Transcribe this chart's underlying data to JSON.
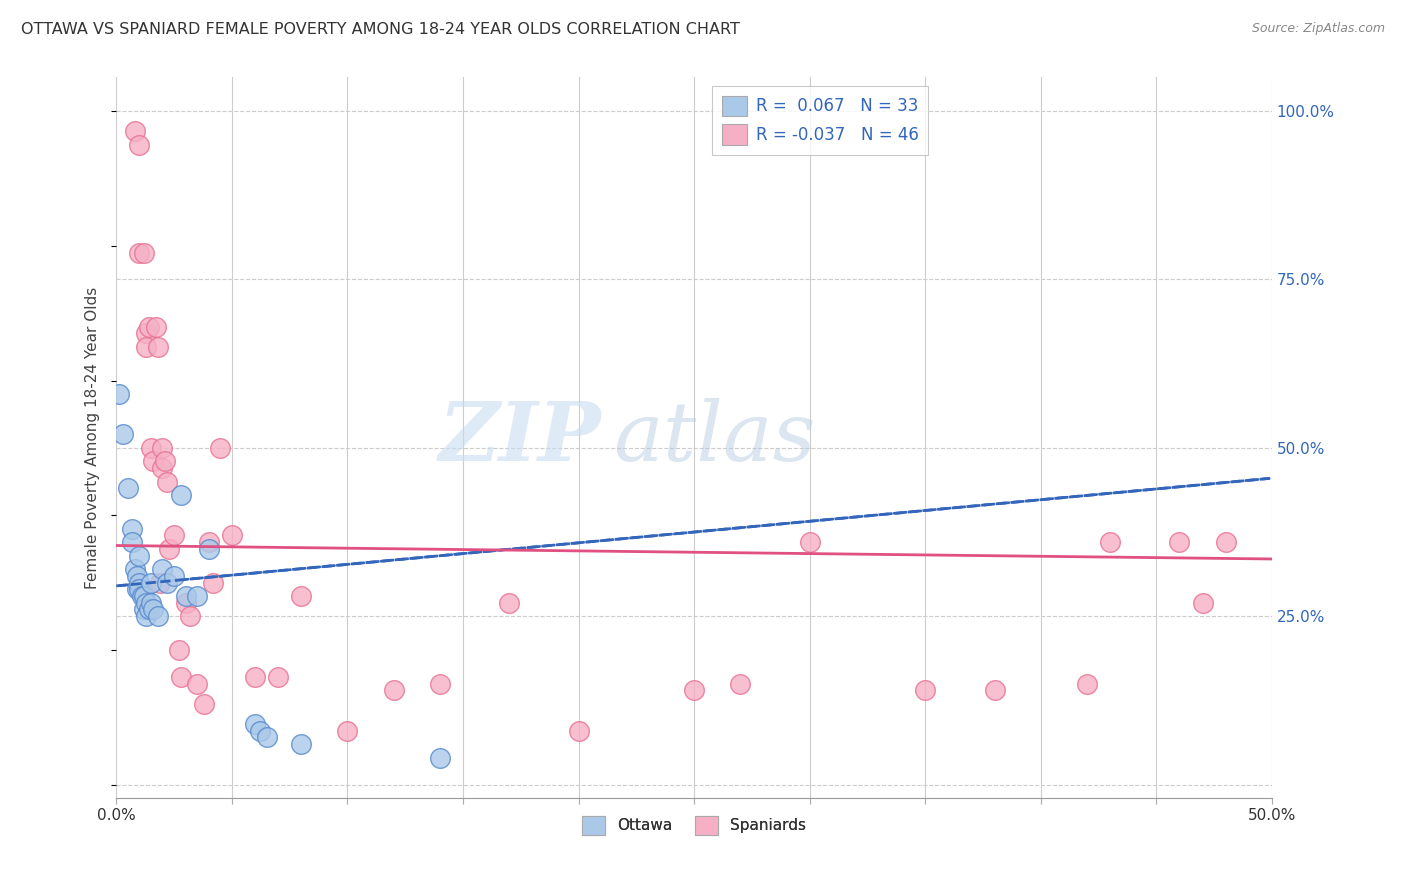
{
  "title": "OTTAWA VS SPANIARD FEMALE POVERTY AMONG 18-24 YEAR OLDS CORRELATION CHART",
  "source": "Source: ZipAtlas.com",
  "ylabel": "Female Poverty Among 18-24 Year Olds",
  "xlim": [
    0.0,
    0.5
  ],
  "ylim": [
    -0.02,
    1.05
  ],
  "xticks": [
    0.0,
    0.05,
    0.1,
    0.15,
    0.2,
    0.25,
    0.3,
    0.35,
    0.4,
    0.45,
    0.5
  ],
  "xticklabels": [
    "0.0%",
    "",
    "",
    "",
    "",
    "",
    "",
    "",
    "",
    "",
    "50.0%"
  ],
  "yticks_right": [
    0.0,
    0.25,
    0.5,
    0.75,
    1.0
  ],
  "yticklabels_right": [
    "",
    "25.0%",
    "50.0%",
    "75.0%",
    "100.0%"
  ],
  "ottawa_color": "#aac8e8",
  "spaniard_color": "#f5b0c5",
  "ottawa_edge_color": "#5588cc",
  "spaniard_edge_color": "#e87090",
  "ottawa_line_color": "#3366bb",
  "spaniard_line_color": "#e05080",
  "ottawa_R": 0.067,
  "ottawa_N": 33,
  "spaniard_R": -0.037,
  "spaniard_N": 46,
  "background_color": "#ffffff",
  "grid_color": "#cccccc",
  "watermark_zip": "ZIP",
  "watermark_atlas": "atlas",
  "legend_text_color": "#3366bb",
  "ottawa_trend_x0": 0.0,
  "ottawa_trend_y0": 0.295,
  "ottawa_trend_x1": 0.5,
  "ottawa_trend_y1": 0.455,
  "spaniard_trend_x0": 0.0,
  "spaniard_trend_y0": 0.355,
  "spaniard_trend_x1": 0.5,
  "spaniard_trend_y1": 0.335,
  "ottawa_scatter_x": [
    0.001,
    0.003,
    0.005,
    0.007,
    0.007,
    0.008,
    0.009,
    0.009,
    0.01,
    0.01,
    0.01,
    0.011,
    0.012,
    0.012,
    0.013,
    0.013,
    0.014,
    0.015,
    0.015,
    0.016,
    0.018,
    0.02,
    0.022,
    0.025,
    0.028,
    0.03,
    0.035,
    0.04,
    0.06,
    0.062,
    0.065,
    0.08,
    0.14
  ],
  "ottawa_scatter_y": [
    0.58,
    0.52,
    0.44,
    0.38,
    0.36,
    0.32,
    0.31,
    0.29,
    0.34,
    0.3,
    0.29,
    0.28,
    0.28,
    0.26,
    0.27,
    0.25,
    0.26,
    0.3,
    0.27,
    0.26,
    0.25,
    0.32,
    0.3,
    0.31,
    0.43,
    0.28,
    0.28,
    0.35,
    0.09,
    0.08,
    0.07,
    0.06,
    0.04
  ],
  "spaniard_scatter_x": [
    0.008,
    0.01,
    0.01,
    0.012,
    0.013,
    0.013,
    0.014,
    0.015,
    0.016,
    0.017,
    0.018,
    0.019,
    0.02,
    0.02,
    0.021,
    0.022,
    0.023,
    0.025,
    0.027,
    0.028,
    0.03,
    0.032,
    0.035,
    0.038,
    0.04,
    0.042,
    0.045,
    0.05,
    0.06,
    0.07,
    0.08,
    0.1,
    0.12,
    0.14,
    0.17,
    0.2,
    0.25,
    0.27,
    0.3,
    0.35,
    0.38,
    0.42,
    0.43,
    0.46,
    0.47,
    0.48
  ],
  "spaniard_scatter_y": [
    0.97,
    0.95,
    0.79,
    0.79,
    0.67,
    0.65,
    0.68,
    0.5,
    0.48,
    0.68,
    0.65,
    0.3,
    0.5,
    0.47,
    0.48,
    0.45,
    0.35,
    0.37,
    0.2,
    0.16,
    0.27,
    0.25,
    0.15,
    0.12,
    0.36,
    0.3,
    0.5,
    0.37,
    0.16,
    0.16,
    0.28,
    0.08,
    0.14,
    0.15,
    0.27,
    0.08,
    0.14,
    0.15,
    0.36,
    0.14,
    0.14,
    0.15,
    0.36,
    0.36,
    0.27,
    0.36
  ]
}
